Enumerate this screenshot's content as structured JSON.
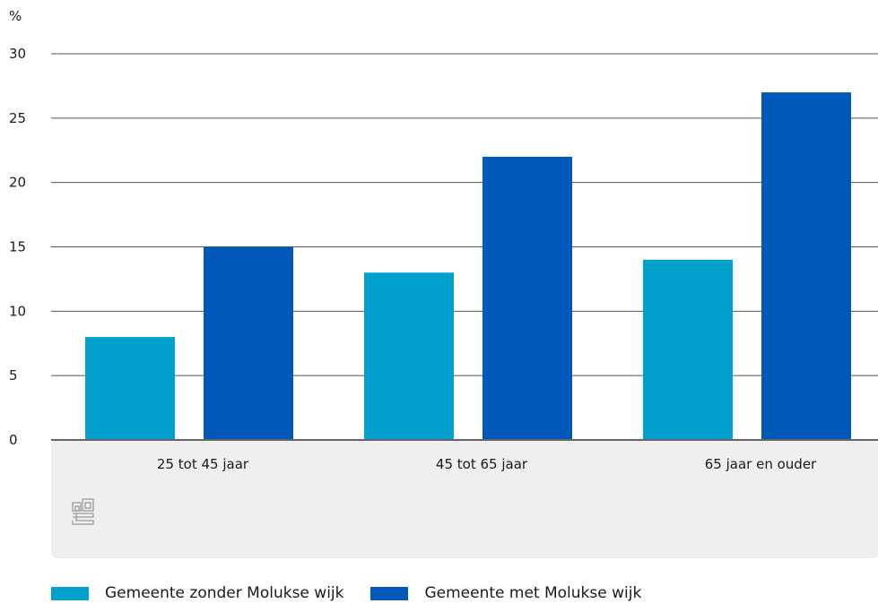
{
  "chart_data": {
    "type": "bar",
    "unit_label": "%",
    "categories": [
      "25 tot 45 jaar",
      "45 tot 65 jaar",
      "65 jaar en ouder"
    ],
    "series": [
      {
        "name": "Gemeente zonder Molukse wijk",
        "values": [
          8,
          13,
          14
        ],
        "color": "#00a1cd"
      },
      {
        "name": "Gemeente met Molukse wijk",
        "values": [
          15,
          22,
          27
        ],
        "color": "#0058b8"
      }
    ],
    "yticks": [
      0,
      5,
      10,
      15,
      20,
      25,
      30
    ],
    "ylim": [
      0,
      30
    ],
    "grid": true,
    "legend_position": "bottom-left",
    "logo": "cbs-logo-icon"
  }
}
